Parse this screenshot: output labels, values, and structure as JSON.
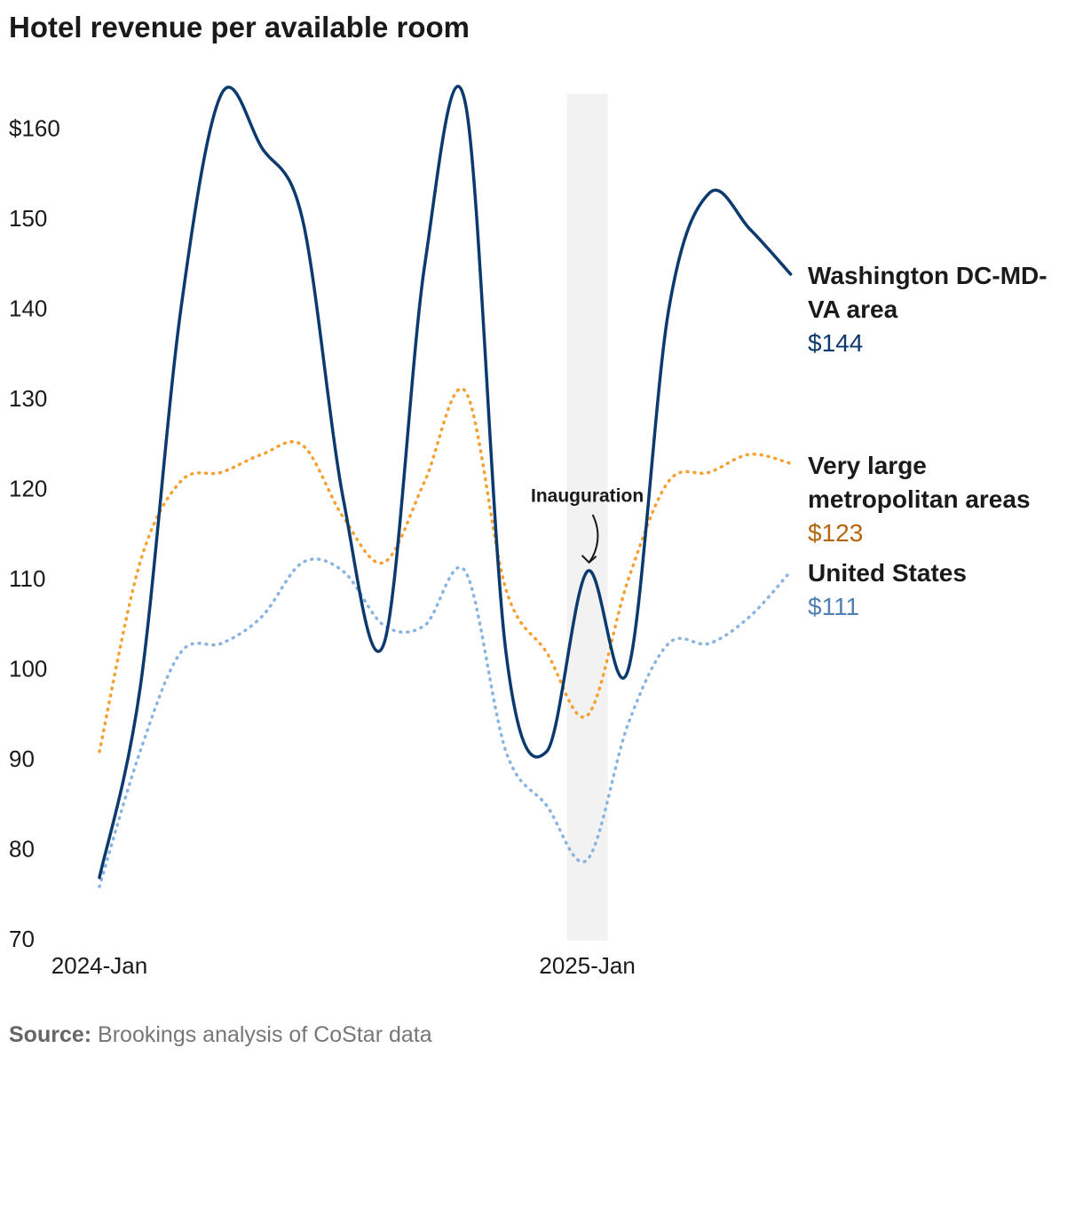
{
  "chart_data": {
    "type": "line",
    "title": "Hotel revenue per available room",
    "categories": [
      "2024-Jan",
      null,
      null,
      null,
      null,
      null,
      null,
      null,
      null,
      null,
      null,
      null,
      "2025-Jan",
      null,
      null,
      null,
      null,
      null
    ],
    "series": [
      {
        "name": "Washington DC-MD-VA area",
        "color": "#0b3a6e",
        "label_color": "#0b3a6e",
        "dashed": false,
        "values": [
          77,
          98,
          140,
          164,
          158,
          150,
          119,
          103,
          145,
          163,
          102,
          91,
          111,
          100,
          140,
          153,
          149,
          144
        ],
        "value_labels": [
          null,
          null,
          null,
          null,
          null,
          null,
          null,
          null,
          null,
          null,
          null,
          null,
          null,
          null,
          null,
          null,
          null,
          "$144"
        ]
      },
      {
        "name": "Very large metropolitan areas",
        "color": "#f5a031",
        "label_color": "#b5650d",
        "dashed": true,
        "values": [
          91,
          112,
          121,
          122,
          124,
          125,
          117,
          112,
          121,
          131,
          109,
          102,
          95,
          110,
          121,
          122,
          124,
          123
        ],
        "value_labels": [
          null,
          null,
          null,
          null,
          null,
          null,
          null,
          null,
          null,
          null,
          null,
          null,
          null,
          null,
          null,
          null,
          null,
          "$123"
        ]
      },
      {
        "name": "United States",
        "color": "#8ab4e0",
        "label_color": "#4f7fb5",
        "dashed": true,
        "values": [
          76,
          91,
          102,
          103,
          106,
          112,
          111,
          105,
          105,
          111,
          91,
          85,
          79,
          94,
          103,
          103,
          106,
          111
        ],
        "value_labels": [
          null,
          null,
          null,
          null,
          null,
          null,
          null,
          null,
          null,
          null,
          null,
          null,
          null,
          null,
          null,
          null,
          null,
          "$111"
        ]
      }
    ],
    "ylim": [
      70,
      164
    ],
    "yticks": [
      70,
      80,
      90,
      100,
      110,
      120,
      130,
      140,
      150,
      {
        "value": 160,
        "label": "$160"
      }
    ],
    "highlight": {
      "x": "2025-Jan",
      "label": "Inauguration"
    },
    "source": {
      "label": "Source:",
      "text": "Brookings analysis of CoStar data"
    }
  }
}
